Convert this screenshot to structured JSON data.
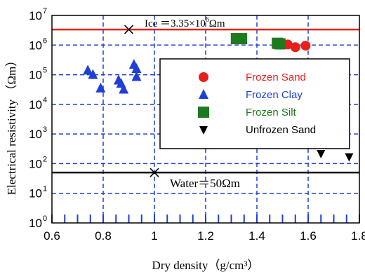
{
  "chart_data": {
    "type": "scatter",
    "xlabel": "Dry density（g/cm³）",
    "ylabel": "Electrical resistivity （Ωm）",
    "x_range": [
      0.6,
      1.8
    ],
    "y_range_log10": [
      0,
      7
    ],
    "y_scale": "log",
    "x_ticks": [
      "0.6",
      "0.8",
      "1",
      "1.2",
      "1.4",
      "1.6",
      "1.8"
    ],
    "y_ticks": [
      {
        "base": "10",
        "exp": "0"
      },
      {
        "base": "10",
        "exp": "1"
      },
      {
        "base": "10",
        "exp": "2"
      },
      {
        "base": "10",
        "exp": "3"
      },
      {
        "base": "10",
        "exp": "4"
      },
      {
        "base": "10",
        "exp": "5"
      },
      {
        "base": "10",
        "exp": "6"
      },
      {
        "base": "10",
        "exp": "7"
      }
    ],
    "grid": true,
    "legend_position": "right",
    "series": [
      {
        "name": "Frozen Sand",
        "marker": "circle",
        "color": "#e8201c",
        "points": [
          {
            "x": 1.48,
            "y": 1200000
          },
          {
            "x": 1.52,
            "y": 1050000
          },
          {
            "x": 1.55,
            "y": 850000
          },
          {
            "x": 1.59,
            "y": 950000
          }
        ]
      },
      {
        "name": "Frozen Clay",
        "marker": "triangle-up",
        "color": "#1f3fd6",
        "points": [
          {
            "x": 0.74,
            "y": 140000
          },
          {
            "x": 0.76,
            "y": 100000
          },
          {
            "x": 0.79,
            "y": 35000
          },
          {
            "x": 0.86,
            "y": 65000
          },
          {
            "x": 0.87,
            "y": 50000
          },
          {
            "x": 0.88,
            "y": 32000
          },
          {
            "x": 0.92,
            "y": 220000
          },
          {
            "x": 0.93,
            "y": 160000
          },
          {
            "x": 0.93,
            "y": 85000
          }
        ]
      },
      {
        "name": "Frozen Silt",
        "marker": "square",
        "color": "#1f7a1f",
        "points": [
          {
            "x": 1.32,
            "y": 1650000
          },
          {
            "x": 1.34,
            "y": 1650000
          },
          {
            "x": 1.48,
            "y": 1150000
          },
          {
            "x": 1.49,
            "y": 1100000
          }
        ]
      },
      {
        "name": "Unfrozen Sand",
        "marker": "triangle-down",
        "color": "#000000",
        "points": [
          {
            "x": 1.65,
            "y": 220
          },
          {
            "x": 1.76,
            "y": 170
          }
        ]
      }
    ],
    "reference_lines": [
      {
        "label_prefix": "Ice ＝3.35×10",
        "label_exp": "6",
        "label_suffix": "Ωm",
        "value": 3350000,
        "color": "#e8201c",
        "marker_x": 0.9
      },
      {
        "label": "Water＝50Ωm",
        "value": 50,
        "color": "#000000",
        "marker_x": 1.0
      }
    ]
  }
}
